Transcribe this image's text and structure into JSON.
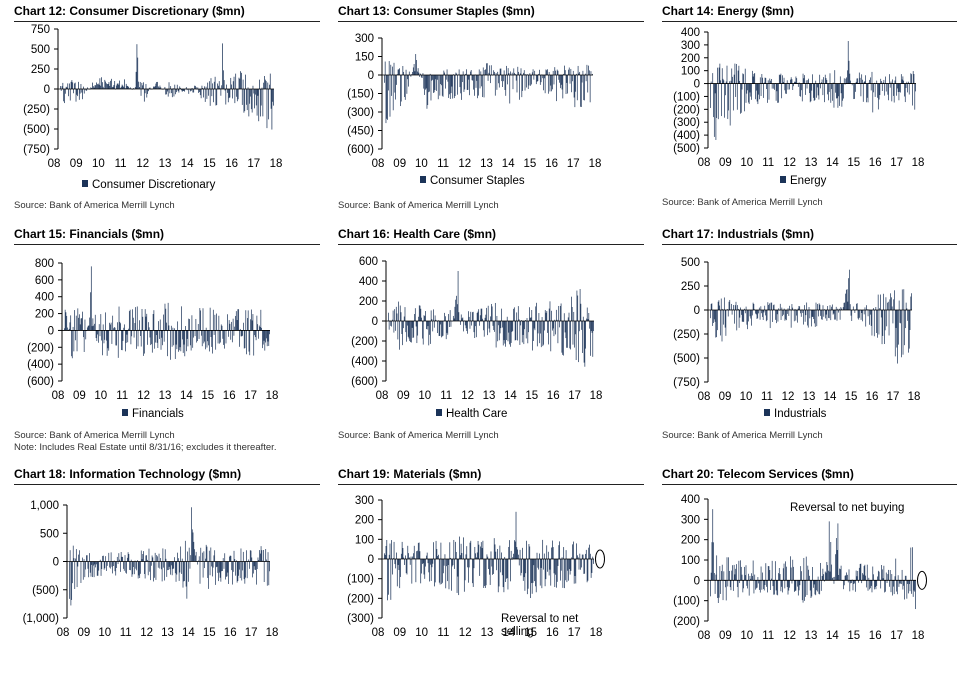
{
  "colors": {
    "bar": "#1b3358",
    "axis": "#000000"
  },
  "panels": [
    {
      "title": "Chart 12: Consumer Discretionary ($mn)",
      "legend": "Consumer Discretionary",
      "source": "Source: Bank of America Merrill Lynch",
      "note": ""
    },
    {
      "title": "Chart 13: Consumer Staples ($mn)",
      "legend": "Consumer Staples",
      "source": "Source: Bank of America Merrill Lynch",
      "note": ""
    },
    {
      "title": "Chart 14: Energy ($mn)",
      "legend": "Energy",
      "source": "Source: Bank of America Merrill Lynch",
      "note": ""
    },
    {
      "title": "Chart 15: Financials ($mn)",
      "legend": "Financials",
      "source": "Source: Bank of America Merrill Lynch",
      "note": "Note: Includes Real Estate until 8/31/16; excludes it thereafter."
    },
    {
      "title": "Chart 16: Health Care ($mn)",
      "legend": "Health Care",
      "source": "Source: Bank of America Merrill Lynch",
      "note": ""
    },
    {
      "title": "Chart 17: Industrials ($mn)",
      "legend": "Industrials",
      "source": "Source: Bank of America Merrill Lynch",
      "note": ""
    },
    {
      "title": "Chart 18: Information Technology ($mn)",
      "legend": "",
      "source": "",
      "note": ""
    },
    {
      "title": "Chart 19: Materials ($mn)",
      "legend": "",
      "source": "",
      "note": ""
    },
    {
      "title": "Chart 20: Telecom Services ($mn)",
      "legend": "",
      "source": "",
      "note": ""
    }
  ],
  "chart_data": [
    {
      "type": "bar",
      "title": "Chart 12: Consumer Discretionary ($mn)",
      "series_name": "Consumer Discretionary",
      "ylim": [
        -750,
        750
      ],
      "ytick_values": [
        750,
        500,
        250,
        0,
        -250,
        -500,
        -750
      ],
      "ytick_labels": [
        "750",
        "500",
        "250",
        "0",
        "(250)",
        "(500)",
        "(750)"
      ],
      "x_labels": [
        "08",
        "09",
        "10",
        "11",
        "12",
        "13",
        "14",
        "15",
        "16",
        "17",
        "18"
      ],
      "annotations": [],
      "profile": [
        [
          0,
          -110
        ],
        [
          0.25,
          -200
        ],
        [
          0.5,
          -180
        ],
        [
          0.75,
          -160
        ],
        [
          1,
          -170
        ],
        [
          1.5,
          80
        ],
        [
          2,
          170
        ],
        [
          2.5,
          120
        ],
        [
          3,
          130
        ],
        [
          3.5,
          -50
        ],
        [
          3.6,
          560
        ],
        [
          3.75,
          -160
        ],
        [
          4,
          -160
        ],
        [
          4.5,
          150
        ],
        [
          5,
          -140
        ],
        [
          5.5,
          -80
        ],
        [
          6,
          -60
        ],
        [
          6.5,
          -100
        ],
        [
          7,
          -220
        ],
        [
          7.5,
          -360
        ],
        [
          7.6,
          570
        ],
        [
          7.75,
          -200
        ],
        [
          8,
          -220
        ],
        [
          8.5,
          -380
        ],
        [
          8.75,
          -700
        ],
        [
          9,
          -330
        ],
        [
          9.5,
          -480
        ],
        [
          10,
          -520
        ]
      ]
    },
    {
      "type": "bar",
      "title": "Chart 13: Consumer Staples ($mn)",
      "series_name": "Consumer Staples",
      "ylim": [
        -600,
        300
      ],
      "ytick_values": [
        300,
        150,
        0,
        -150,
        -300,
        -450,
        -600
      ],
      "ytick_labels": [
        "300",
        "150",
        "0",
        "(150)",
        "(300)",
        "(450)",
        "(600)"
      ],
      "x_labels": [
        "08",
        "09",
        "10",
        "11",
        "12",
        "13",
        "14",
        "15",
        "16",
        "17",
        "18"
      ],
      "annotations": [],
      "profile": [
        [
          0,
          -350
        ],
        [
          0.25,
          -500
        ],
        [
          0.5,
          -300
        ],
        [
          1,
          -250
        ],
        [
          1.5,
          170
        ],
        [
          2,
          -300
        ],
        [
          2.5,
          -200
        ],
        [
          3,
          -200
        ],
        [
          3.5,
          -250
        ],
        [
          4,
          -150
        ],
        [
          4.5,
          -250
        ],
        [
          5,
          -300
        ],
        [
          5.5,
          -150
        ],
        [
          6,
          -250
        ],
        [
          6.5,
          -200
        ],
        [
          7,
          -150
        ],
        [
          7.5,
          -150
        ],
        [
          8,
          -200
        ],
        [
          8.5,
          -250
        ],
        [
          9,
          -250
        ],
        [
          9.5,
          -300
        ],
        [
          10,
          -200
        ]
      ]
    },
    {
      "type": "bar",
      "title": "Chart 14: Energy ($mn)",
      "series_name": "Energy",
      "ylim": [
        -500,
        400
      ],
      "ytick_values": [
        400,
        300,
        200,
        100,
        0,
        -100,
        -200,
        -300,
        -400,
        -500
      ],
      "ytick_labels": [
        "400",
        "300",
        "200",
        "100",
        "0",
        "(100)",
        "(200)",
        "(300)",
        "(400)",
        "(500)"
      ],
      "x_labels": [
        "08",
        "09",
        "10",
        "11",
        "12",
        "13",
        "14",
        "15",
        "16",
        "17",
        "18"
      ],
      "annotations": [],
      "profile": [
        [
          0,
          -300
        ],
        [
          0.25,
          -450
        ],
        [
          0.5,
          -350
        ],
        [
          1,
          -350
        ],
        [
          1.5,
          -250
        ],
        [
          2,
          -200
        ],
        [
          2.5,
          -150
        ],
        [
          3,
          -150
        ],
        [
          3.5,
          -150
        ],
        [
          4,
          -100
        ],
        [
          4.5,
          -150
        ],
        [
          5,
          -150
        ],
        [
          5.5,
          -150
        ],
        [
          6,
          -200
        ],
        [
          6.5,
          -180
        ],
        [
          6.7,
          330
        ],
        [
          7,
          -200
        ],
        [
          7.5,
          -150
        ],
        [
          8,
          -250
        ],
        [
          8.5,
          -150
        ],
        [
          9,
          -150
        ],
        [
          9.5,
          -150
        ],
        [
          10,
          -250
        ]
      ]
    },
    {
      "type": "bar",
      "title": "Chart 15: Financials ($mn)",
      "series_name": "Financials",
      "ylim": [
        -600,
        800
      ],
      "ytick_values": [
        800,
        600,
        400,
        200,
        0,
        -200,
        -400,
        -600
      ],
      "ytick_labels": [
        "800",
        "600",
        "400",
        "200",
        "0",
        "(200)",
        "(400)",
        "(600)"
      ],
      "x_labels": [
        "08",
        "09",
        "10",
        "11",
        "12",
        "13",
        "14",
        "15",
        "16",
        "17",
        "18"
      ],
      "annotations": [],
      "profile": [
        [
          0,
          -300
        ],
        [
          0.25,
          -400
        ],
        [
          0.5,
          -300
        ],
        [
          1,
          -300
        ],
        [
          1.3,
          760
        ],
        [
          1.5,
          -300
        ],
        [
          2,
          -300
        ],
        [
          2.5,
          -350
        ],
        [
          3,
          -300
        ],
        [
          3.5,
          -350
        ],
        [
          4,
          -300
        ],
        [
          4.5,
          -350
        ],
        [
          5,
          -400
        ],
        [
          5.5,
          -350
        ],
        [
          6,
          -300
        ],
        [
          6.5,
          -300
        ],
        [
          7,
          -350
        ],
        [
          7.5,
          -300
        ],
        [
          8,
          -250
        ],
        [
          8.5,
          -300
        ],
        [
          9,
          -300
        ],
        [
          9.5,
          -300
        ],
        [
          10,
          -250
        ]
      ]
    },
    {
      "type": "bar",
      "title": "Chart 16: Health Care ($mn)",
      "series_name": "Health Care",
      "ylim": [
        -600,
        600
      ],
      "ytick_values": [
        600,
        400,
        200,
        0,
        -200,
        -400,
        -600
      ],
      "ytick_labels": [
        "600",
        "400",
        "200",
        "0",
        "(200)",
        "(400)",
        "(600)"
      ],
      "x_labels": [
        "08",
        "09",
        "10",
        "11",
        "12",
        "13",
        "14",
        "15",
        "16",
        "17",
        "18"
      ],
      "annotations": [],
      "profile": [
        [
          0,
          -200
        ],
        [
          0.5,
          -300
        ],
        [
          1,
          -250
        ],
        [
          1.5,
          -250
        ],
        [
          2,
          -250
        ],
        [
          2.5,
          -200
        ],
        [
          3,
          -200
        ],
        [
          3.4,
          500
        ],
        [
          3.5,
          -150
        ],
        [
          4,
          -150
        ],
        [
          4.5,
          -200
        ],
        [
          5,
          -300
        ],
        [
          5.5,
          -250
        ],
        [
          6,
          -300
        ],
        [
          6.5,
          -250
        ],
        [
          7,
          -300
        ],
        [
          7.5,
          -350
        ],
        [
          8,
          -300
        ],
        [
          8.5,
          -350
        ],
        [
          9,
          -450
        ],
        [
          9.5,
          -550
        ],
        [
          10,
          -400
        ]
      ]
    },
    {
      "type": "bar",
      "title": "Chart 17: Industrials ($mn)",
      "series_name": "Industrials",
      "ylim": [
        -750,
        500
      ],
      "ytick_values": [
        500,
        250,
        0,
        -250,
        -500,
        -750
      ],
      "ytick_labels": [
        "500",
        "250",
        "0",
        "(250)",
        "(500)",
        "(750)"
      ],
      "x_labels": [
        "08",
        "09",
        "10",
        "11",
        "12",
        "13",
        "14",
        "15",
        "16",
        "17",
        "18"
      ],
      "annotations": [],
      "profile": [
        [
          0,
          -300
        ],
        [
          0.5,
          -350
        ],
        [
          1,
          -250
        ],
        [
          1.5,
          -200
        ],
        [
          2,
          -200
        ],
        [
          2.5,
          -150
        ],
        [
          3,
          -200
        ],
        [
          3.5,
          -150
        ],
        [
          4,
          -200
        ],
        [
          4.5,
          -150
        ],
        [
          5,
          -200
        ],
        [
          5.5,
          -150
        ],
        [
          6,
          -150
        ],
        [
          6.5,
          -100
        ],
        [
          6.9,
          420
        ],
        [
          7,
          -150
        ],
        [
          7.5,
          -200
        ],
        [
          8,
          -300
        ],
        [
          8.5,
          -400
        ],
        [
          9,
          -450
        ],
        [
          9.5,
          -650
        ],
        [
          10,
          -500
        ]
      ]
    },
    {
      "type": "bar",
      "title": "Chart 18: Information Technology ($mn)",
      "series_name": "Information Technology",
      "ylim": [
        -1000,
        1000
      ],
      "ytick_values": [
        1000,
        500,
        0,
        -500,
        -1000
      ],
      "ytick_labels": [
        "1,000",
        "500",
        "0",
        "(500)",
        "(1,000)"
      ],
      "x_labels": [
        "08",
        "09",
        "10",
        "11",
        "12",
        "13",
        "14",
        "15",
        "16",
        "17",
        "18"
      ],
      "annotations": [],
      "profile": [
        [
          0,
          -900
        ],
        [
          0.25,
          -600
        ],
        [
          0.5,
          -400
        ],
        [
          1,
          -300
        ],
        [
          1.5,
          -300
        ],
        [
          2,
          -250
        ],
        [
          2.5,
          -250
        ],
        [
          3,
          -300
        ],
        [
          3.5,
          -300
        ],
        [
          4,
          -350
        ],
        [
          4.5,
          -400
        ],
        [
          5,
          -350
        ],
        [
          5.5,
          -400
        ],
        [
          6,
          -950
        ],
        [
          6.1,
          960
        ],
        [
          6.5,
          -400
        ],
        [
          7,
          -500
        ],
        [
          7.5,
          -400
        ],
        [
          8,
          -400
        ],
        [
          8.5,
          -450
        ],
        [
          9,
          -400
        ],
        [
          9.5,
          -450
        ],
        [
          10,
          -500
        ]
      ]
    },
    {
      "type": "bar",
      "title": "Chart 19: Materials ($mn)",
      "series_name": "Materials",
      "ylim": [
        -300,
        300
      ],
      "ytick_values": [
        300,
        200,
        100,
        0,
        -100,
        -200,
        -300
      ],
      "ytick_labels": [
        "300",
        "200",
        "100",
        "0",
        "(100)",
        "(200)",
        "(300)"
      ],
      "x_labels": [
        "08",
        "09",
        "10",
        "11",
        "12",
        "13",
        "14",
        "15",
        "16",
        "17",
        "18"
      ],
      "annotations": [
        {
          "text": "Reversal to net selling",
          "lines": [
            "Reversal to net",
            "selling"
          ]
        }
      ],
      "profile": [
        [
          0,
          -200
        ],
        [
          0.25,
          -250
        ],
        [
          0.5,
          -150
        ],
        [
          1,
          -150
        ],
        [
          1.5,
          -150
        ],
        [
          2,
          -100
        ],
        [
          2.5,
          -150
        ],
        [
          3,
          -150
        ],
        [
          3.5,
          -200
        ],
        [
          4,
          -150
        ],
        [
          4.5,
          -150
        ],
        [
          5,
          -150
        ],
        [
          5.5,
          -200
        ],
        [
          6,
          -150
        ],
        [
          6.3,
          240
        ],
        [
          6.5,
          -150
        ],
        [
          7,
          -200
        ],
        [
          7.5,
          -150
        ],
        [
          8,
          -150
        ],
        [
          8.5,
          -150
        ],
        [
          9,
          -150
        ],
        [
          9.5,
          -120
        ],
        [
          10,
          -120
        ]
      ]
    },
    {
      "type": "bar",
      "title": "Chart 20: Telecom Services ($mn)",
      "series_name": "Telecom Services",
      "ylim": [
        -200,
        400
      ],
      "ytick_values": [
        400,
        300,
        200,
        100,
        0,
        -100,
        -200
      ],
      "ytick_labels": [
        "400",
        "300",
        "200",
        "100",
        "0",
        "(100)",
        "(200)"
      ],
      "x_labels": [
        "08",
        "09",
        "10",
        "11",
        "12",
        "13",
        "14",
        "15",
        "16",
        "17",
        "18"
      ],
      "annotations": [
        {
          "text": "Reversal to net buying",
          "lines": [
            "Reversal to net buying"
          ]
        }
      ],
      "profile": [
        [
          0,
          -100
        ],
        [
          0.1,
          350
        ],
        [
          0.25,
          -150
        ],
        [
          0.5,
          -100
        ],
        [
          1,
          -100
        ],
        [
          1.5,
          -80
        ],
        [
          2,
          -80
        ],
        [
          2.5,
          -60
        ],
        [
          3,
          -80
        ],
        [
          3.5,
          -70
        ],
        [
          4,
          -100
        ],
        [
          4.5,
          -120
        ],
        [
          5,
          -80
        ],
        [
          5.5,
          -80
        ],
        [
          5.8,
          290
        ],
        [
          6,
          -80
        ],
        [
          6.2,
          280
        ],
        [
          6.5,
          -60
        ],
        [
          7,
          -70
        ],
        [
          7.5,
          -60
        ],
        [
          8,
          -60
        ],
        [
          8.5,
          -60
        ],
        [
          9,
          -80
        ],
        [
          9.5,
          -100
        ],
        [
          10,
          -150
        ]
      ]
    }
  ]
}
